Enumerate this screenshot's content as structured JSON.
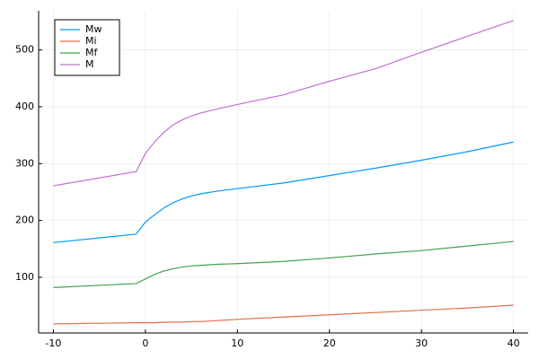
{
  "chart_data": {
    "type": "line",
    "x": [
      -10,
      -1,
      0,
      1,
      2,
      3,
      4,
      5,
      6,
      8,
      10,
      15,
      20,
      25,
      30,
      35,
      40
    ],
    "series": [
      {
        "name": "Mw",
        "color": "#009af9",
        "values": [
          161,
          176,
          197,
          210,
          222,
          231,
          238,
          243,
          247,
          252,
          256,
          266,
          279,
          292,
          306,
          321,
          338
        ]
      },
      {
        "name": "Mi",
        "color": "#e26f46",
        "values": [
          18,
          20,
          20,
          20,
          21,
          21,
          21,
          22,
          22,
          24,
          26,
          30,
          34,
          38,
          42,
          46,
          51
        ]
      },
      {
        "name": "Mf",
        "color": "#3ea44e",
        "values": [
          82,
          89,
          97,
          105,
          111,
          115,
          118,
          120,
          121,
          123,
          124,
          128,
          134,
          141,
          147,
          155,
          163
        ]
      },
      {
        "name": "M",
        "color": "#c271d2",
        "values": [
          261,
          286,
          318,
          338,
          355,
          368,
          377,
          384,
          389,
          397,
          404,
          421,
          445,
          467,
          496,
          524,
          552
        ]
      }
    ],
    "xlim": [
      -11.6,
      41.6
    ],
    "xticks": [
      -10,
      0,
      10,
      20,
      30,
      40
    ],
    "ylim": [
      2,
      569
    ],
    "yticks": [
      100,
      200,
      300,
      400,
      500
    ],
    "grid": true,
    "legend": "top-left"
  }
}
